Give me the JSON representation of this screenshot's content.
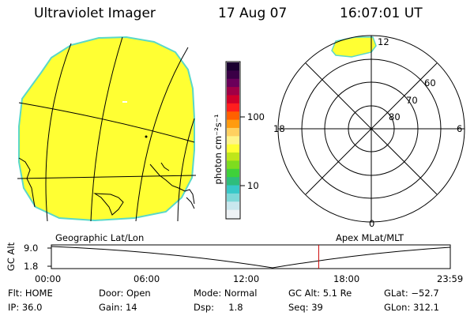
{
  "header": {
    "title": "Ultraviolet Imager",
    "date": "17 Aug 07",
    "time": "16:07:01 UT"
  },
  "colorbar": {
    "unit_label": "photon cm⁻²s⁻¹",
    "ticks": [
      "100",
      "10"
    ],
    "colors": [
      "#eef2f5",
      "#c9e7ee",
      "#7ed8d8",
      "#38c8c8",
      "#2ebd7c",
      "#3fd13a",
      "#7edc1e",
      "#bfe61a",
      "#ffff33",
      "#fff48a",
      "#ffd060",
      "#ff9b10",
      "#ff6000",
      "#ff1e1e",
      "#d0002a",
      "#a00046",
      "#6a005a",
      "#3a0046",
      "#1a0030"
    ]
  },
  "polar_plot": {
    "lat_labels": [
      "60",
      "70",
      "80"
    ],
    "mlt_labels": {
      "top": "12",
      "left": "18",
      "right": "6",
      "bottom": "0"
    }
  },
  "map": {
    "left_label": "Geographic Lat/Lon",
    "right_label": "Apex MLat/MLT"
  },
  "timeline": {
    "axis_label": "GC Alt",
    "y_ticks": [
      "9.0",
      "1.8"
    ],
    "x_ticks": [
      "00:00",
      "06:00",
      "12:00",
      "18:00",
      "23:59"
    ],
    "current_time_fraction": 0.67
  },
  "info": {
    "flt": "Flt: HOME",
    "ip": "IP: 36.0",
    "door": "Door: Open",
    "gain": "Gain: 14",
    "mode": "Mode: Normal",
    "dsp": "Dsp:     1.8",
    "gc_alt": "GC Alt: 5.1 Re",
    "seq": "Seq: 39",
    "glat": "GLat: −52.7",
    "glon": "GLon: 312.1"
  },
  "colors": {
    "image_fill": "#ffff33",
    "image_rim": "#5ad8c8",
    "marker": "#cc0000"
  }
}
